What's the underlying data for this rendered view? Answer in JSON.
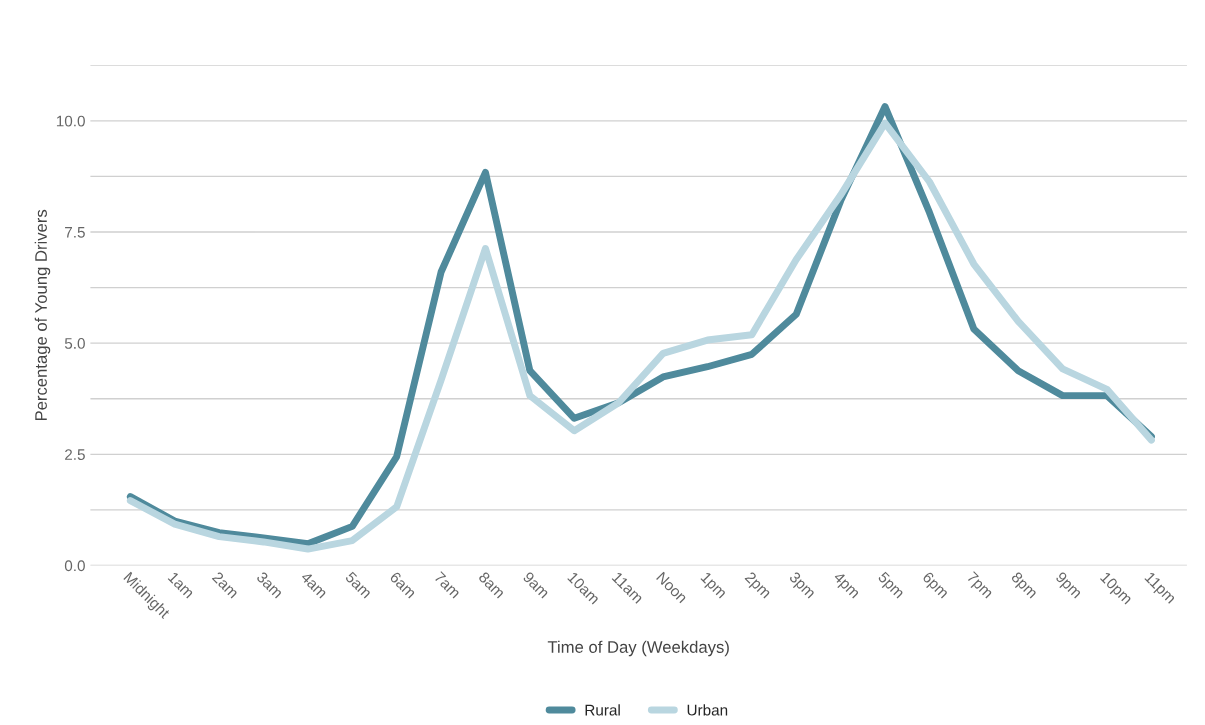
{
  "chart_data": {
    "type": "line",
    "xlabel": "Time of Day (Weekdays)",
    "ylabel": "Percentage of Young Drivers",
    "categories": [
      "Midnight",
      "1am",
      "2am",
      "3am",
      "4am",
      "5am",
      "6am",
      "7am",
      "8am",
      "9am",
      "10am",
      "11am",
      "Noon",
      "1pm",
      "2pm",
      "3pm",
      "4pm",
      "5pm",
      "6pm",
      "7pm",
      "8pm",
      "9pm",
      "10pm",
      "11pm"
    ],
    "series": [
      {
        "name": "Rural",
        "color": "#4f8a9c",
        "values": [
          1.55,
          1.0,
          0.74,
          0.62,
          0.49,
          0.88,
          2.45,
          6.6,
          8.84,
          4.38,
          3.31,
          3.66,
          4.24,
          4.47,
          4.75,
          5.65,
          8.2,
          10.32,
          7.94,
          5.32,
          4.38,
          3.82,
          3.82,
          2.9
        ]
      },
      {
        "name": "Urban",
        "color": "#b9d6e0",
        "values": [
          1.46,
          0.93,
          0.65,
          0.53,
          0.37,
          0.56,
          1.32,
          4.17,
          7.13,
          3.82,
          3.03,
          3.66,
          4.77,
          5.07,
          5.19,
          6.88,
          8.33,
          9.95,
          8.63,
          6.78,
          5.49,
          4.42,
          3.96,
          2.82
        ]
      }
    ],
    "ylim": [
      0,
      11.25
    ],
    "yticks": [
      {
        "value": 0,
        "label": "0.0"
      },
      {
        "value": 1.25,
        "label": null
      },
      {
        "value": 2.5,
        "label": "2.5"
      },
      {
        "value": 3.75,
        "label": null
      },
      {
        "value": 5,
        "label": "5.0"
      },
      {
        "value": 6.25,
        "label": null
      },
      {
        "value": 7.5,
        "label": "7.5"
      },
      {
        "value": 8.75,
        "label": null
      },
      {
        "value": 10,
        "label": "10.0"
      },
      {
        "value": 11.25,
        "label": null
      }
    ],
    "grid": "y",
    "legend": "bottom",
    "line_style": "solid",
    "marker": "none"
  }
}
